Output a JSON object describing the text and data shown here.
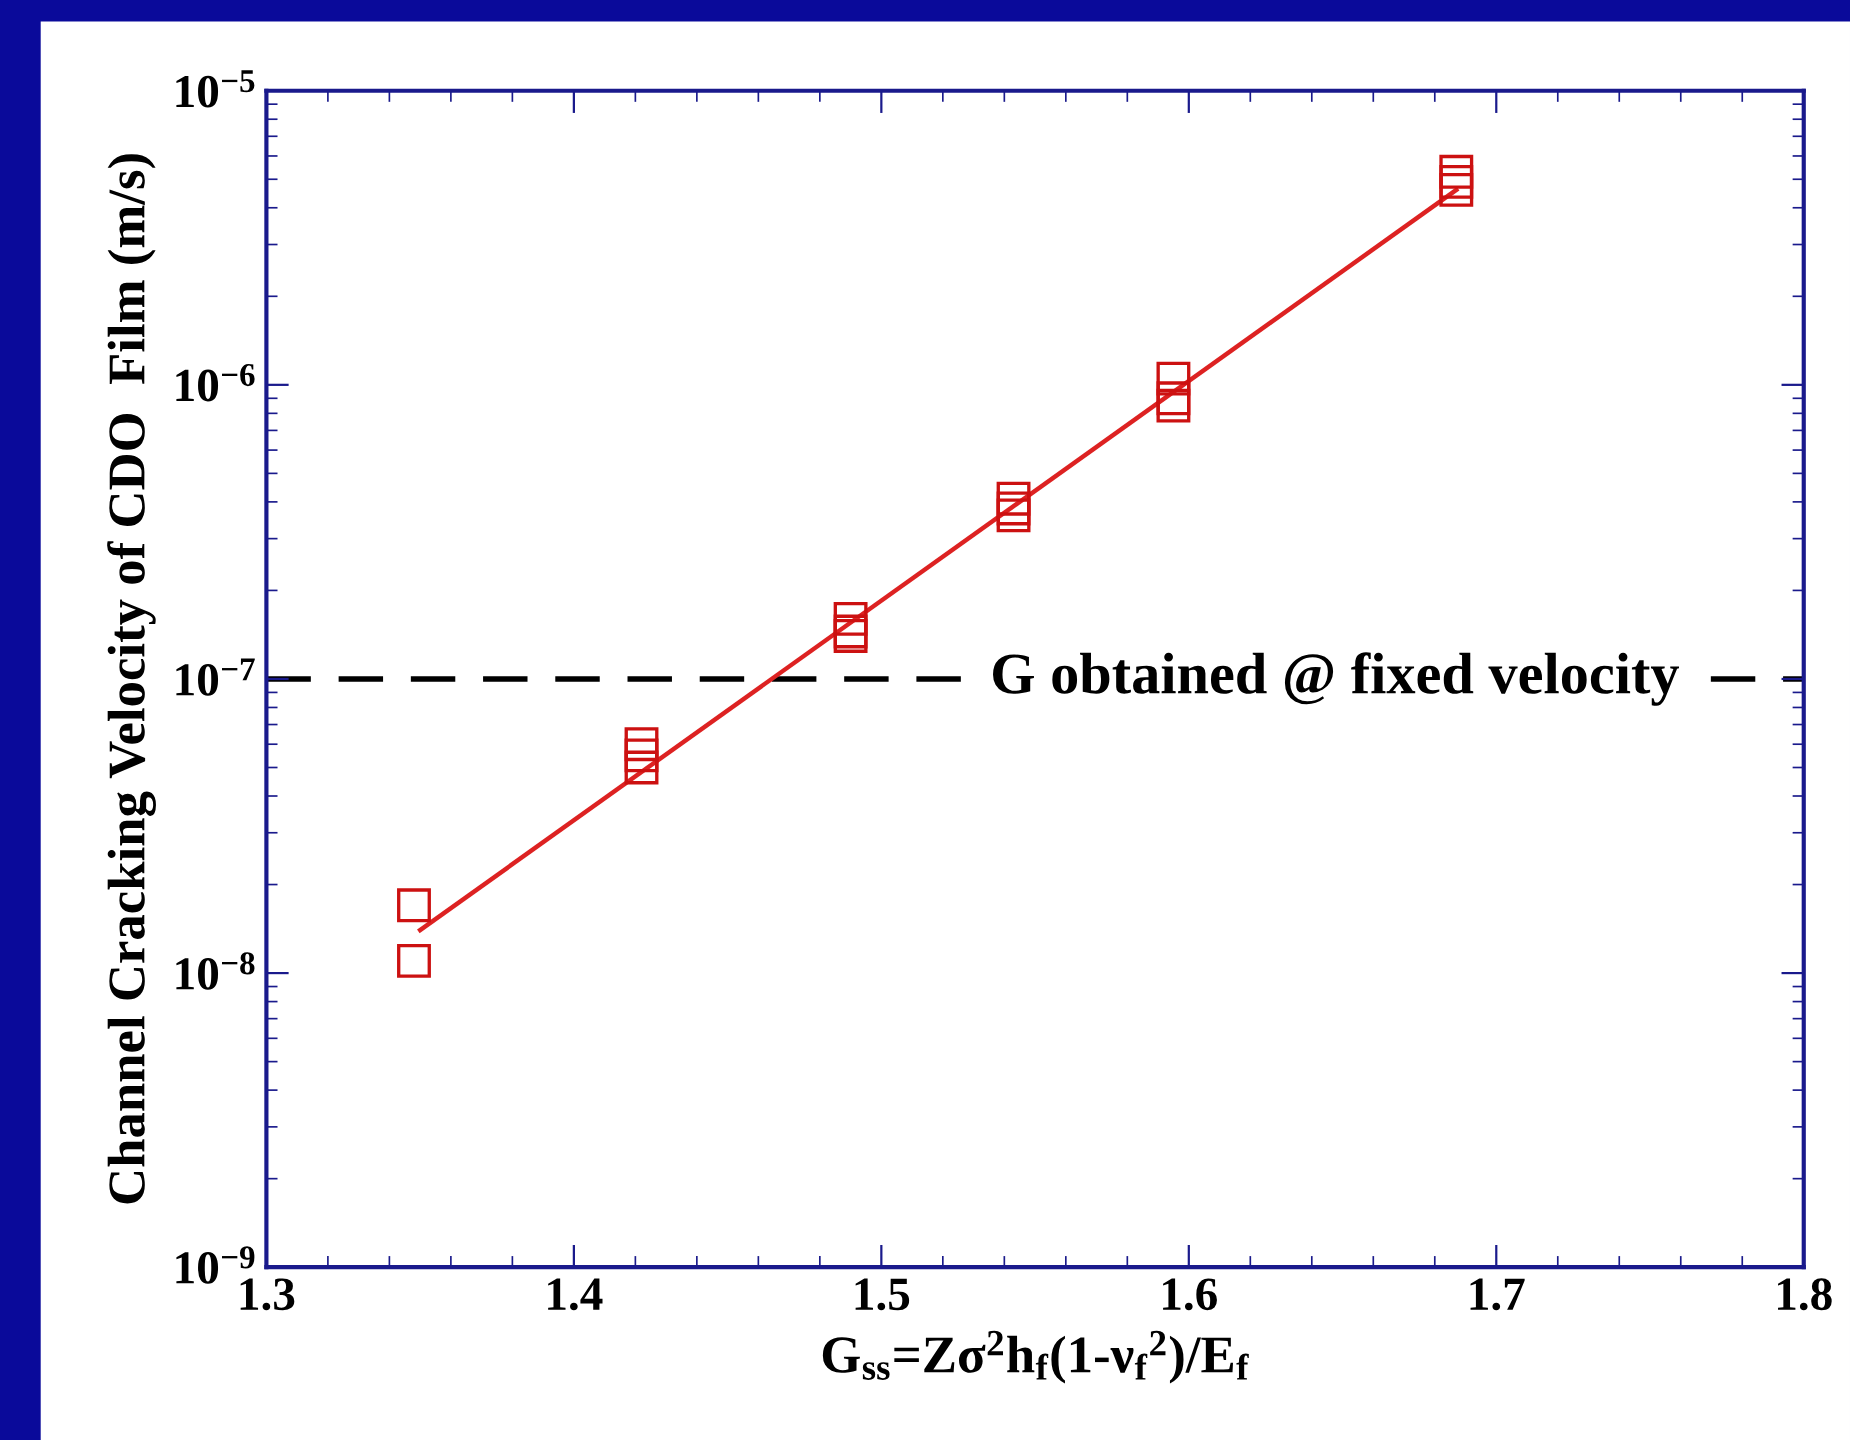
{
  "chart_data": {
    "type": "scatter",
    "xlabel": "G$_{ss}$=Zσ$^{2}$h$_{f}$(1-ν$_{f}$$^{2}$)/E$_{f}$",
    "ylabel": "Channel Cracking Velocity of CDO  Film (m/s)",
    "log": "y",
    "xlim": [
      1.3,
      1.8
    ],
    "xticks": [
      1.3,
      1.4,
      1.5,
      1.6,
      1.7,
      1.8
    ],
    "ylim": [
      1e-09,
      1e-05
    ],
    "yticks": [
      {
        "value": 1e-09,
        "label": "10$^{−9}$"
      },
      {
        "value": 1e-08,
        "label": "10$^{−8}$"
      },
      {
        "value": 1e-07,
        "label": "10$^{−7}$"
      },
      {
        "value": 1e-06,
        "label": "10$^{−6}$"
      },
      {
        "value": 1e-05,
        "label": "10$^{−5}$"
      }
    ],
    "grid": false,
    "series": [
      {
        "color": "#cc1111",
        "marker": "square",
        "x": [
          1.348,
          1.348,
          1.422,
          1.422,
          1.422,
          1.49,
          1.49,
          1.49,
          1.543,
          1.543,
          1.543,
          1.595,
          1.595,
          1.595,
          1.687,
          1.687,
          1.687
        ],
        "values": [
          1.7e-08,
          1.1e-08,
          6e-08,
          5.5e-08,
          5e-08,
          1.6e-07,
          1.45e-07,
          1.4e-07,
          4.1e-07,
          3.8e-07,
          3.6e-07,
          1.05e-06,
          9e-07,
          8.5e-07,
          5.3e-06,
          4.9e-06,
          4.6e-06
        ]
      },
      {
        "type": "line",
        "color": "#dd2222",
        "line_style": "solid",
        "x": [
          1.35,
          1.687
        ],
        "values": [
          1.4e-08,
          4.6e-06
        ]
      }
    ],
    "ref_lines": [
      {
        "axis": "y",
        "value": 1e-07,
        "label": "G obtained @ fixed velocity",
        "color": "#000000",
        "line_style": "dashed"
      }
    ]
  }
}
